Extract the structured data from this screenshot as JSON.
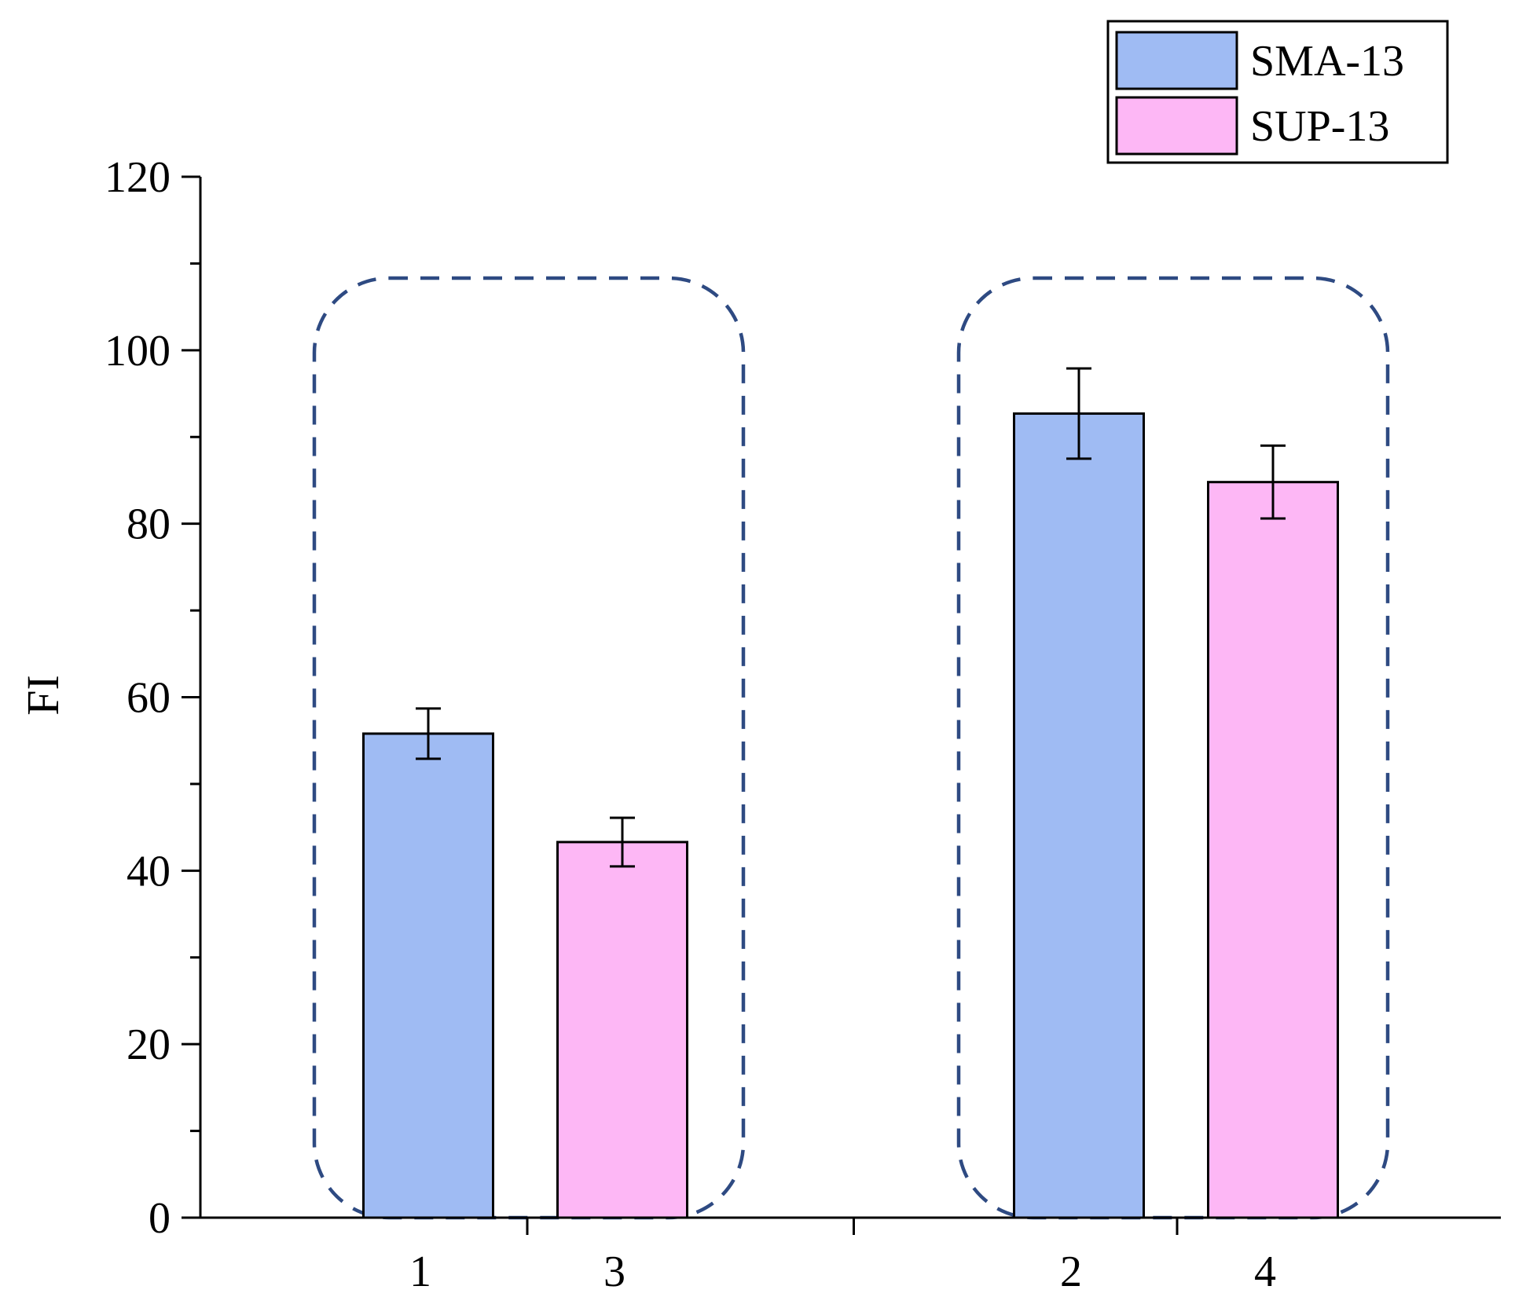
{
  "chart_data": {
    "type": "bar",
    "title": "",
    "xlabel": "",
    "ylabel": "FI",
    "ylim": [
      0,
      120
    ],
    "yticks": [
      0,
      20,
      40,
      60,
      80,
      100,
      120
    ],
    "ytick_labels": [
      "0",
      "20",
      "40",
      "60",
      "80",
      "100",
      "120"
    ],
    "series": [
      {
        "name": "SMA-13",
        "color": "#9fbbf3"
      },
      {
        "name": "SUP-13",
        "color": "#fdb7f5"
      }
    ],
    "groups": [
      {
        "bars": [
          {
            "label": "1",
            "series": "SMA-13",
            "value": 55.8,
            "error": 2.9
          },
          {
            "label": "3",
            "series": "SUP-13",
            "value": 43.3,
            "error": 2.8
          }
        ]
      },
      {
        "bars": [
          {
            "label": "2",
            "series": "SMA-13",
            "value": 92.7,
            "error": 5.2
          },
          {
            "label": "4",
            "series": "SUP-13",
            "value": 84.8,
            "error": 4.2
          }
        ]
      }
    ],
    "annotation_color": "#2e4a82",
    "grid": false,
    "legend": "top-right"
  }
}
